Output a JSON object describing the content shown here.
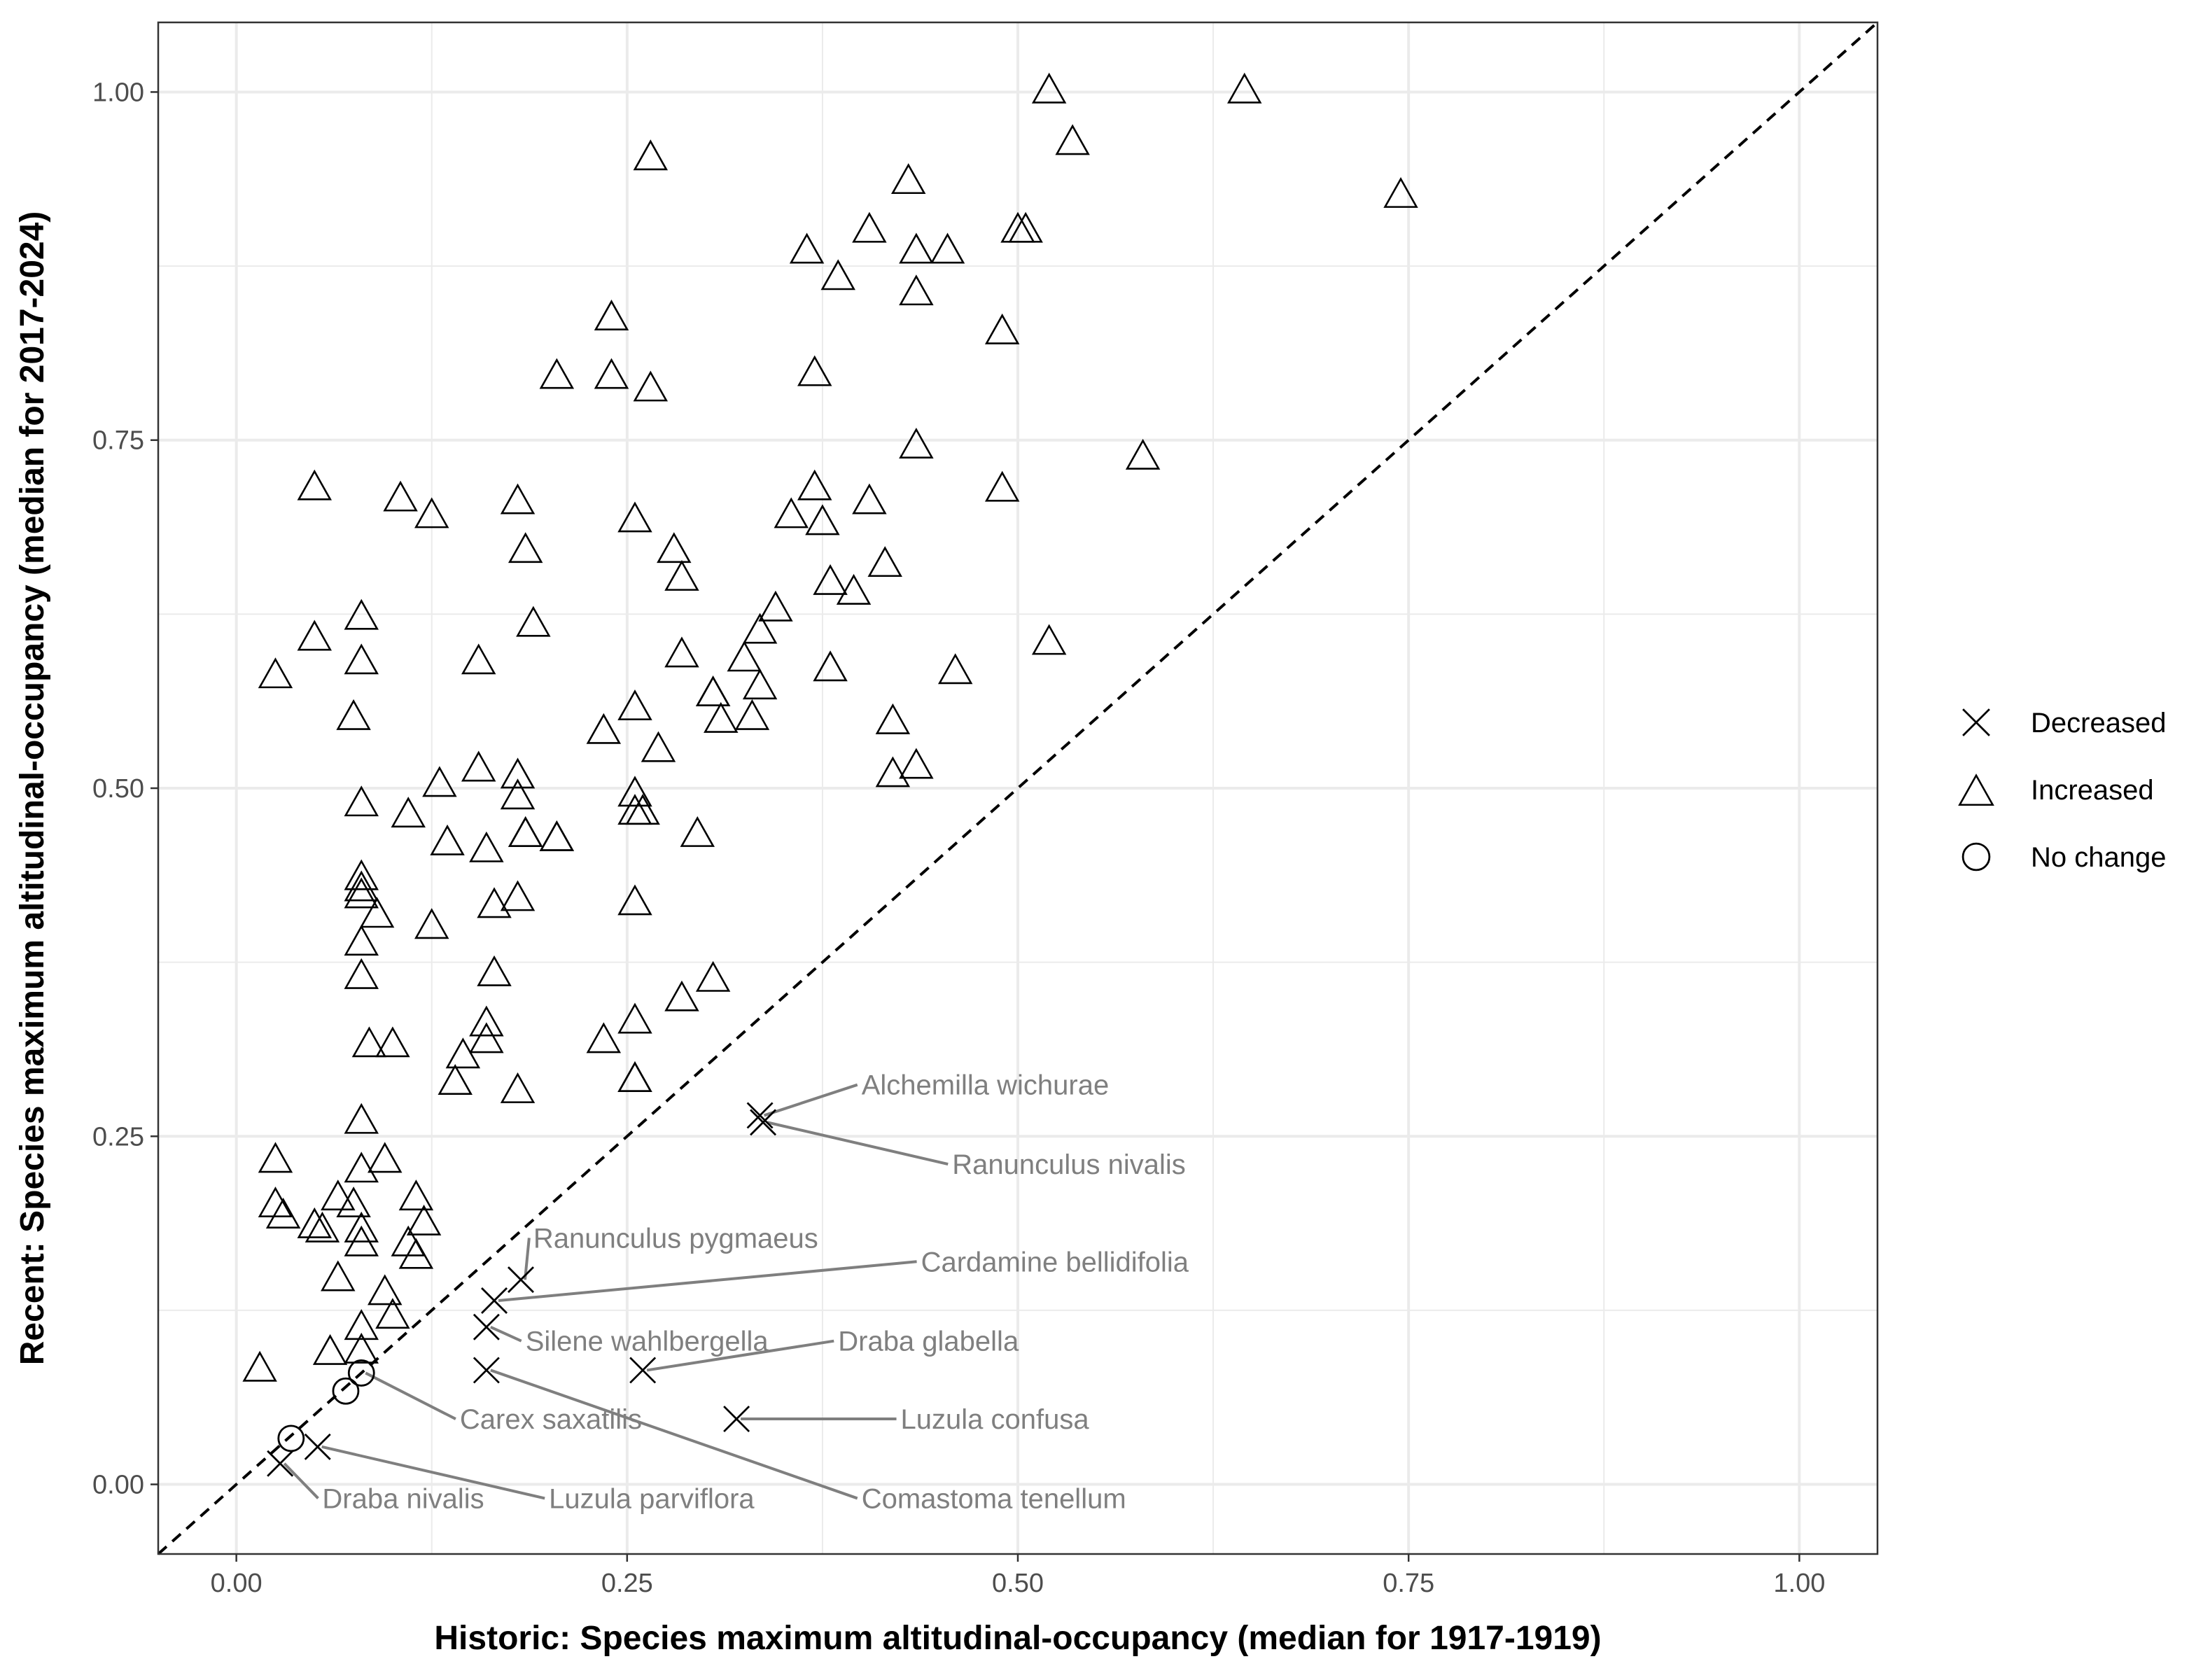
{
  "chart_data": {
    "type": "scatter",
    "xlabel": "Historic: Species maximum altitudinal-occupancy (median for 1917-1919)",
    "ylabel": "Recent: Species maximum altitudinal-occupancy (median for 2017-2024)",
    "xlim": [
      -0.05,
      1.05
    ],
    "ylim": [
      -0.05,
      1.05
    ],
    "x_ticks": [
      "0.00",
      "0.25",
      "0.50",
      "0.75",
      "1.00"
    ],
    "y_ticks": [
      "0.00",
      "0.25",
      "0.50",
      "0.75",
      "1.00"
    ],
    "grid": true,
    "reference_line": "y = x (dashed)",
    "legend_placement": "right",
    "series": [
      {
        "name": "Decreased",
        "shape": "cross",
        "points": [
          [
            0.335,
            0.265
          ],
          [
            0.337,
            0.26
          ],
          [
            0.182,
            0.147
          ],
          [
            0.165,
            0.132
          ],
          [
            0.16,
            0.113
          ],
          [
            0.16,
            0.082
          ],
          [
            0.26,
            0.082
          ],
          [
            0.32,
            0.047
          ],
          [
            0.052,
            0.027
          ],
          [
            0.028,
            0.015
          ]
        ]
      },
      {
        "name": "Increased",
        "shape": "triangle",
        "points": [
          [
            0.52,
            1.0
          ],
          [
            0.645,
            1.0
          ],
          [
            0.535,
            0.963
          ],
          [
            0.265,
            0.952
          ],
          [
            0.745,
            0.925
          ],
          [
            0.43,
            0.935
          ],
          [
            0.405,
            0.9
          ],
          [
            0.5,
            0.9
          ],
          [
            0.505,
            0.9
          ],
          [
            0.365,
            0.885
          ],
          [
            0.435,
            0.885
          ],
          [
            0.455,
            0.885
          ],
          [
            0.385,
            0.866
          ],
          [
            0.435,
            0.855
          ],
          [
            0.24,
            0.837
          ],
          [
            0.49,
            0.827
          ],
          [
            0.205,
            0.795
          ],
          [
            0.24,
            0.795
          ],
          [
            0.37,
            0.797
          ],
          [
            0.265,
            0.786
          ],
          [
            0.58,
            0.737
          ],
          [
            0.435,
            0.745
          ],
          [
            0.05,
            0.715
          ],
          [
            0.37,
            0.715
          ],
          [
            0.49,
            0.714
          ],
          [
            0.105,
            0.707
          ],
          [
            0.18,
            0.705
          ],
          [
            0.405,
            0.705
          ],
          [
            0.125,
            0.695
          ],
          [
            0.255,
            0.692
          ],
          [
            0.355,
            0.695
          ],
          [
            0.375,
            0.69
          ],
          [
            0.28,
            0.67
          ],
          [
            0.185,
            0.67
          ],
          [
            0.415,
            0.66
          ],
          [
            0.285,
            0.65
          ],
          [
            0.38,
            0.647
          ],
          [
            0.395,
            0.64
          ],
          [
            0.345,
            0.628
          ],
          [
            0.08,
            0.622
          ],
          [
            0.19,
            0.617
          ],
          [
            0.335,
            0.612
          ],
          [
            0.05,
            0.607
          ],
          [
            0.52,
            0.604
          ],
          [
            0.08,
            0.59
          ],
          [
            0.155,
            0.59
          ],
          [
            0.285,
            0.595
          ],
          [
            0.325,
            0.592
          ],
          [
            0.025,
            0.58
          ],
          [
            0.38,
            0.585
          ],
          [
            0.46,
            0.583
          ],
          [
            0.335,
            0.572
          ],
          [
            0.305,
            0.567
          ],
          [
            0.305,
            0.567
          ],
          [
            0.255,
            0.557
          ],
          [
            0.075,
            0.55
          ],
          [
            0.31,
            0.548
          ],
          [
            0.33,
            0.55
          ],
          [
            0.42,
            0.547
          ],
          [
            0.235,
            0.54
          ],
          [
            0.27,
            0.527
          ],
          [
            0.155,
            0.513
          ],
          [
            0.435,
            0.515
          ],
          [
            0.42,
            0.509
          ],
          [
            0.13,
            0.502
          ],
          [
            0.18,
            0.508
          ],
          [
            0.255,
            0.495
          ],
          [
            0.18,
            0.493
          ],
          [
            0.08,
            0.488
          ],
          [
            0.255,
            0.482
          ],
          [
            0.26,
            0.482
          ],
          [
            0.11,
            0.48
          ],
          [
            0.185,
            0.466
          ],
          [
            0.185,
            0.466
          ],
          [
            0.205,
            0.463
          ],
          [
            0.205,
            0.463
          ],
          [
            0.295,
            0.466
          ],
          [
            0.135,
            0.46
          ],
          [
            0.16,
            0.455
          ],
          [
            0.08,
            0.435
          ],
          [
            0.08,
            0.427
          ],
          [
            0.08,
            0.422
          ],
          [
            0.18,
            0.42
          ],
          [
            0.255,
            0.417
          ],
          [
            0.165,
            0.415
          ],
          [
            0.09,
            0.408
          ],
          [
            0.125,
            0.4
          ],
          [
            0.08,
            0.388
          ],
          [
            0.08,
            0.364
          ],
          [
            0.165,
            0.366
          ],
          [
            0.305,
            0.362
          ],
          [
            0.285,
            0.348
          ],
          [
            0.16,
            0.33
          ],
          [
            0.255,
            0.332
          ],
          [
            0.235,
            0.318
          ],
          [
            0.16,
            0.318
          ],
          [
            0.085,
            0.315
          ],
          [
            0.1,
            0.315
          ],
          [
            0.145,
            0.307
          ],
          [
            0.255,
            0.29
          ],
          [
            0.255,
            0.29
          ],
          [
            0.14,
            0.288
          ],
          [
            0.18,
            0.282
          ],
          [
            0.08,
            0.26
          ],
          [
            0.025,
            0.232
          ],
          [
            0.095,
            0.232
          ],
          [
            0.08,
            0.225
          ],
          [
            0.065,
            0.205
          ],
          [
            0.115,
            0.205
          ],
          [
            0.025,
            0.2
          ],
          [
            0.075,
            0.2
          ],
          [
            0.03,
            0.192
          ],
          [
            0.05,
            0.185
          ],
          [
            0.12,
            0.187
          ],
          [
            0.08,
            0.182
          ],
          [
            0.055,
            0.182
          ],
          [
            0.08,
            0.172
          ],
          [
            0.11,
            0.172
          ],
          [
            0.115,
            0.163
          ],
          [
            0.065,
            0.147
          ],
          [
            0.095,
            0.137
          ],
          [
            0.1,
            0.12
          ],
          [
            0.08,
            0.112
          ],
          [
            0.08,
            0.095
          ],
          [
            0.06,
            0.094
          ],
          [
            0.015,
            0.082
          ]
        ]
      },
      {
        "name": "No change",
        "shape": "circle",
        "points": [
          [
            0.08,
            0.08
          ],
          [
            0.07,
            0.067
          ],
          [
            0.035,
            0.033
          ]
        ]
      }
    ],
    "annotations": [
      {
        "label": "Alchemilla wichurae",
        "point": [
          0.335,
          0.265
        ],
        "text_at": [
          0.4,
          0.287
        ]
      },
      {
        "label": "Ranunculus nivalis",
        "point": [
          0.337,
          0.26
        ],
        "text_at": [
          0.458,
          0.23
        ]
      },
      {
        "label": "Ranunculus pygmaeus",
        "point": [
          0.182,
          0.147
        ],
        "text_at": [
          0.19,
          0.177
        ]
      },
      {
        "label": "Cardamine bellidifolia",
        "point": [
          0.165,
          0.132
        ],
        "text_at": [
          0.438,
          0.16
        ]
      },
      {
        "label": "Silene wahlbergella",
        "point": [
          0.16,
          0.113
        ],
        "text_at": [
          0.185,
          0.103
        ]
      },
      {
        "label": "Draba glabella",
        "point": [
          0.26,
          0.082
        ],
        "text_at": [
          0.385,
          0.103
        ]
      },
      {
        "label": "Carex saxatilis",
        "point": [
          0.08,
          0.08
        ],
        "text_at": [
          0.143,
          0.047
        ]
      },
      {
        "label": "Luzula confusa",
        "point": [
          0.32,
          0.047
        ],
        "text_at": [
          0.425,
          0.047
        ]
      },
      {
        "label": "Draba nivalis",
        "point": [
          0.028,
          0.015
        ],
        "text_at": [
          0.055,
          -0.01
        ]
      },
      {
        "label": "Luzula parviflora",
        "point": [
          0.052,
          0.027
        ],
        "text_at": [
          0.2,
          -0.01
        ]
      },
      {
        "label": "Comastoma tenellum",
        "point": [
          0.16,
          0.082
        ],
        "text_at": [
          0.4,
          -0.01
        ]
      }
    ],
    "colors": {
      "points": "#000000",
      "reference_line": "#000000",
      "annotation_text": "#7f7f7f",
      "annotation_line": "#7f7f7f",
      "grid": "#ebebeb",
      "panel_border": "#333333"
    }
  }
}
